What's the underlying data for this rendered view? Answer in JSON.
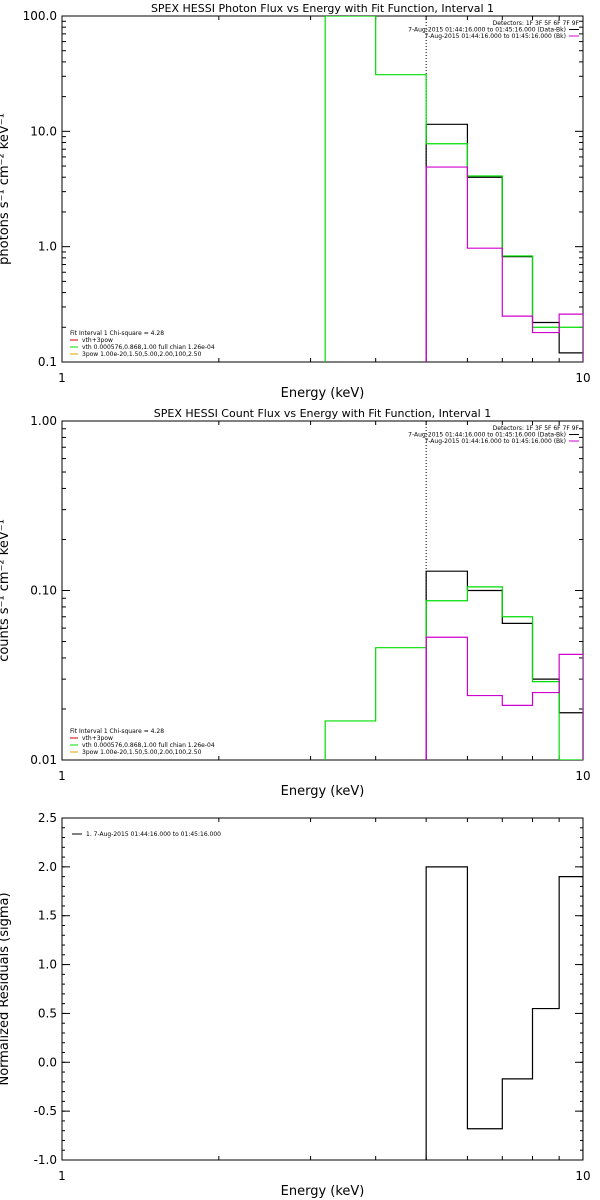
{
  "colors": {
    "black": "#000000",
    "green": "#00dd00",
    "magenta": "#d000d0",
    "red": "#cc0000",
    "orange": "#e0a000"
  },
  "chart_data": [
    {
      "type": "line",
      "title": "SPEX HESSI Photon Flux vs Energy with Fit Function, Interval 1",
      "xlabel": "Energy (keV)",
      "ylabel": "photons s⁻¹ cm⁻² keV⁻¹",
      "xlim": [
        1,
        10
      ],
      "ylim": [
        0.1,
        100
      ],
      "xscale": "log",
      "yscale": "log",
      "x_ticks": [
        "1",
        "10"
      ],
      "y_ticks": [
        {
          "v": 0.1,
          "label": "0.1"
        },
        {
          "v": 1,
          "label": "1.0"
        },
        {
          "v": 10,
          "label": "10.0"
        },
        {
          "v": 100,
          "label": "100.0"
        }
      ],
      "vline": 5.0,
      "legend_tr": [
        {
          "text": "Detectors: 1F 3F 5F 6F 7F 9F",
          "color": "#000000",
          "line": false
        },
        {
          "text": "7-Aug-2015 01:44:16.000 to 01:45:16.000 (Data-Bk)",
          "color": "#000000",
          "line": true
        },
        {
          "text": "7-Aug-2015 01:44:16.000 to 01:45:16.000 (Bk)",
          "color": "#d000d0",
          "line": true
        }
      ],
      "legend_bl": [
        {
          "text": "Fit Interval 1    Chi-square = 4.28",
          "color": "#000000",
          "line": false
        },
        {
          "text": "vth+3pow",
          "color": "#cc0000",
          "line": true
        },
        {
          "text": "vth 0.000576,0.868,1.00  full chian 1.26e-04",
          "color": "#00dd00",
          "line": true
        },
        {
          "text": "3pow 1.00e-20,1.50,5.00,2.00,100,2.50",
          "color": "#e0a000",
          "line": true
        }
      ],
      "series": [
        {
          "name": "Data-Bk",
          "color": "#000000",
          "edges": [
            5.0,
            6.0,
            7.0,
            8.0,
            9.0,
            10.0
          ],
          "values": [
            11.5,
            4.0,
            0.82,
            0.22,
            0.12
          ]
        },
        {
          "name": "vth+3pow",
          "color": "#00dd00",
          "edges": [
            3.2,
            4.0,
            5.0,
            6.0,
            7.0,
            8.0,
            9.0,
            10.0
          ],
          "values": [
            100,
            31,
            7.8,
            4.1,
            0.83,
            0.2,
            0.2
          ]
        },
        {
          "name": "Bk",
          "color": "#d000d0",
          "edges": [
            5.0,
            6.0,
            7.0,
            8.0,
            9.0,
            10.0
          ],
          "values": [
            4.9,
            0.97,
            0.25,
            0.18,
            0.26
          ]
        }
      ]
    },
    {
      "type": "line",
      "title": "SPEX HESSI Count Flux vs Energy with Fit Function, Interval 1",
      "xlabel": "Energy (keV)",
      "ylabel": "counts s⁻¹ cm⁻² keV⁻¹",
      "xlim": [
        1,
        10
      ],
      "ylim": [
        0.01,
        1.0
      ],
      "xscale": "log",
      "yscale": "log",
      "x_ticks": [
        "1",
        "10"
      ],
      "y_ticks": [
        {
          "v": 0.01,
          "label": "0.01"
        },
        {
          "v": 0.1,
          "label": "0.10"
        },
        {
          "v": 1,
          "label": "1.00"
        }
      ],
      "vline": 5.0,
      "legend_tr": [
        {
          "text": "Detectors: 1F 3F 5F 6F 7F 9F",
          "color": "#000000",
          "line": false
        },
        {
          "text": "7-Aug-2015 01:44:16.000 to 01:45:16.000 (Data-Bk)",
          "color": "#000000",
          "line": true
        },
        {
          "text": "7-Aug-2015 01:44:16.000 to 01:45:16.000 (Bk)",
          "color": "#d000d0",
          "line": true
        }
      ],
      "legend_bl": [
        {
          "text": "Fit Interval 1    Chi-square = 4.28",
          "color": "#000000",
          "line": false
        },
        {
          "text": "vth+3pow",
          "color": "#cc0000",
          "line": true
        },
        {
          "text": "vth 0.000576,0.868,1.00  full chian 1.26e-04",
          "color": "#00dd00",
          "line": true
        },
        {
          "text": "3pow 1.00e-20,1.50,5.00,2.00,100,2.50",
          "color": "#e0a000",
          "line": true
        }
      ],
      "series": [
        {
          "name": "Data-Bk",
          "color": "#000000",
          "edges": [
            5.0,
            6.0,
            7.0,
            8.0,
            9.0,
            10.0
          ],
          "values": [
            0.13,
            0.1,
            0.064,
            0.03,
            0.019
          ]
        },
        {
          "name": "vth+3pow",
          "color": "#00dd00",
          "edges": [
            3.2,
            4.0,
            5.0,
            6.0,
            7.0,
            8.0,
            9.0,
            10.0
          ],
          "values": [
            0.017,
            0.046,
            0.087,
            0.105,
            0.07,
            0.029,
            0.01
          ]
        },
        {
          "name": "Bk",
          "color": "#d000d0",
          "edges": [
            5.0,
            6.0,
            7.0,
            8.0,
            9.0,
            10.0
          ],
          "values": [
            0.053,
            0.024,
            0.021,
            0.025,
            0.042
          ]
        }
      ]
    },
    {
      "type": "line",
      "title": "",
      "xlabel": "Energy (keV)",
      "ylabel": "Normalized Residuals (sigma)",
      "xlim": [
        1,
        10
      ],
      "ylim": [
        -1.0,
        2.5
      ],
      "xscale": "log",
      "yscale": "linear",
      "x_ticks": [
        "1",
        "10"
      ],
      "y_ticks": [
        {
          "v": -1.0,
          "label": "-1.0"
        },
        {
          "v": -0.5,
          "label": "-0.5"
        },
        {
          "v": 0.0,
          "label": "0.0"
        },
        {
          "v": 0.5,
          "label": "0.5"
        },
        {
          "v": 1.0,
          "label": "1.0"
        },
        {
          "v": 1.5,
          "label": "1.5"
        },
        {
          "v": 2.0,
          "label": "2.0"
        },
        {
          "v": 2.5,
          "label": "2.5"
        }
      ],
      "legend_tl": [
        {
          "text": "1.  7-Aug-2015 01:44:16.000 to 01:45:16.000",
          "color": "#000000",
          "line": true
        }
      ],
      "series": [
        {
          "name": "1.  7-Aug-2015 01:44:16.000 to 01:45:16.000",
          "color": "#000000",
          "edges": [
            5.0,
            6.0,
            7.0,
            8.0,
            9.0,
            10.0
          ],
          "values": [
            2.0,
            -0.68,
            -0.17,
            0.55,
            1.9
          ]
        }
      ]
    }
  ]
}
